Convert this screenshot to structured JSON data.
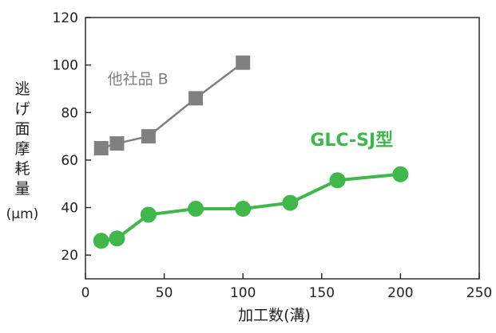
{
  "chart_data": {
    "type": "line",
    "title": "",
    "xlabel": "加工数(溝)",
    "ylabel": "逃げ面摩耗量\n(μm)",
    "xlim": [
      0,
      250
    ],
    "ylim": [
      10,
      120
    ],
    "x_ticks": [
      0,
      50,
      100,
      150,
      200,
      250
    ],
    "y_ticks": [
      20,
      40,
      60,
      80,
      100,
      120
    ],
    "grid": false,
    "series": [
      {
        "name": "他社品 B",
        "color": "#808080",
        "marker": "square",
        "points": [
          {
            "x": 10,
            "y": 65
          },
          {
            "x": 20,
            "y": 67
          },
          {
            "x": 40,
            "y": 70
          },
          {
            "x": 70,
            "y": 86
          },
          {
            "x": 100,
            "y": 101
          }
        ]
      },
      {
        "name": "GLC-SJ型",
        "color": "#3fb74a",
        "marker": "circle",
        "points": [
          {
            "x": 10,
            "y": 26
          },
          {
            "x": 20,
            "y": 27
          },
          {
            "x": 40,
            "y": 37
          },
          {
            "x": 70,
            "y": 39.5
          },
          {
            "x": 100,
            "y": 39.5
          },
          {
            "x": 130,
            "y": 42
          },
          {
            "x": 160,
            "y": 51.5
          },
          {
            "x": 200,
            "y": 54
          }
        ]
      }
    ]
  }
}
